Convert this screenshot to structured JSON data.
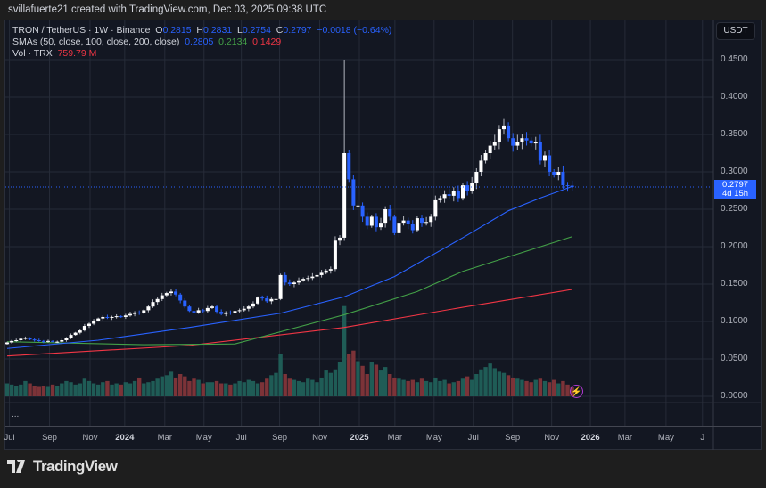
{
  "credit": "svillafuerte21 created with TradingView.com, Dec 03, 2025 09:38 UTC",
  "legend": {
    "symbol": "TRON / TetherUS · 1W · Binance",
    "o_label": "O",
    "o": "0.2815",
    "h_label": "H",
    "h": "0.2831",
    "l_label": "L",
    "l": "0.2754",
    "c_label": "C",
    "c": "0.2797",
    "change": "−0.0018 (−0.64%)",
    "sma_label": "SMAs (50, close, 100, close, 200, close)",
    "sma50": "0.2805",
    "sma100": "0.2134",
    "sma200": "0.1429",
    "vol_label": "Vol · TRX",
    "vol": "759.79 M",
    "more": "..."
  },
  "currency": "USDT",
  "last_price": {
    "value": "0.2797",
    "countdown": "4d 15h"
  },
  "logo": "TradingView",
  "colors": {
    "up": "#ffffff",
    "down": "#2962ff",
    "vol_up": "#1f5c56",
    "vol_down": "#7c3338",
    "sma50": "#2962ff",
    "sma100": "#43a047",
    "sma200": "#f23645",
    "background": "#131722",
    "grid": "#262b38"
  },
  "chart_data": {
    "type": "candlestick",
    "interval": "1W",
    "price_ticks": [
      "0.4500",
      "0.4000",
      "0.3500",
      "0.3000",
      "0.2500",
      "0.2000",
      "0.1500",
      "0.1000",
      "0.0500",
      "0.0000"
    ],
    "ylim": [
      0,
      0.5
    ],
    "time_ticks": [
      {
        "label": "Jul",
        "week": 0.5
      },
      {
        "label": "Sep",
        "week": 9.3
      },
      {
        "label": "Nov",
        "week": 18.2
      },
      {
        "label": "2024",
        "week": 25.8,
        "year": true
      },
      {
        "label": "Mar",
        "week": 34.6
      },
      {
        "label": "May",
        "week": 43.2
      },
      {
        "label": "Jul",
        "week": 51.4
      },
      {
        "label": "Sep",
        "week": 59.8
      },
      {
        "label": "Nov",
        "week": 68.6
      },
      {
        "label": "2025",
        "week": 77.3,
        "year": true
      },
      {
        "label": "Mar",
        "week": 85.1
      },
      {
        "label": "May",
        "week": 93.7
      },
      {
        "label": "Jul",
        "week": 102.3
      },
      {
        "label": "Sep",
        "week": 110.9
      },
      {
        "label": "Nov",
        "week": 119.5
      },
      {
        "label": "2026",
        "week": 128,
        "year": true
      },
      {
        "label": "Mar",
        "week": 135.6
      },
      {
        "label": "May",
        "week": 144.6
      },
      {
        "label": "J",
        "week": 152.6
      }
    ],
    "closes": [
      0.072,
      0.074,
      0.075,
      0.077,
      0.078,
      0.076,
      0.075,
      0.074,
      0.073,
      0.074,
      0.073,
      0.073,
      0.075,
      0.078,
      0.082,
      0.085,
      0.088,
      0.094,
      0.097,
      0.101,
      0.104,
      0.106,
      0.105,
      0.106,
      0.107,
      0.106,
      0.108,
      0.11,
      0.112,
      0.111,
      0.115,
      0.12,
      0.126,
      0.13,
      0.135,
      0.138,
      0.14,
      0.136,
      0.128,
      0.12,
      0.114,
      0.112,
      0.115,
      0.114,
      0.118,
      0.12,
      0.113,
      0.11,
      0.112,
      0.111,
      0.114,
      0.115,
      0.117,
      0.12,
      0.124,
      0.132,
      0.131,
      0.127,
      0.13,
      0.13,
      0.162,
      0.152,
      0.15,
      0.152,
      0.155,
      0.157,
      0.158,
      0.16,
      0.162,
      0.165,
      0.168,
      0.17,
      0.208,
      0.212,
      0.325,
      0.29,
      0.255,
      0.255,
      0.24,
      0.228,
      0.24,
      0.226,
      0.232,
      0.25,
      0.24,
      0.218,
      0.232,
      0.235,
      0.23,
      0.222,
      0.238,
      0.232,
      0.233,
      0.24,
      0.262,
      0.265,
      0.27,
      0.268,
      0.275,
      0.265,
      0.282,
      0.275,
      0.285,
      0.3,
      0.315,
      0.325,
      0.335,
      0.34,
      0.357,
      0.362,
      0.345,
      0.335,
      0.34,
      0.345,
      0.342,
      0.338,
      0.34,
      0.315,
      0.322,
      0.3,
      0.296,
      0.3,
      0.282,
      0.2815,
      0.2797
    ],
    "spike_high": {
      "week": 74,
      "value": 0.45
    },
    "volume_m": [
      1100,
      1000,
      900,
      1000,
      1300,
      1100,
      900,
      800,
      900,
      800,
      1000,
      900,
      1100,
      1300,
      1200,
      1000,
      1100,
      1500,
      1300,
      1100,
      1000,
      1200,
      1300,
      1000,
      1100,
      1000,
      1200,
      1100,
      1300,
      1600,
      1100,
      1200,
      1300,
      1500,
      1700,
      1800,
      2100,
      1600,
      1900,
      1700,
      1300,
      1500,
      1400,
      1100,
      1200,
      1200,
      1300,
      1100,
      1100,
      1000,
      1100,
      1300,
      1200,
      1400,
      1300,
      1100,
      1200,
      1500,
      1800,
      2000,
      3600,
      1900,
      1500,
      1400,
      1300,
      1200,
      1500,
      1400,
      1200,
      1600,
      2200,
      2000,
      2300,
      2900,
      7700,
      3600,
      3900,
      3000,
      2600,
      1900,
      2900,
      2700,
      2200,
      2500,
      1900,
      1600,
      1500,
      1400,
      1300,
      1400,
      1200,
      1500,
      1300,
      1200,
      1600,
      1300,
      1400,
      1100,
      1200,
      1300,
      1500,
      1700,
      1400,
      1900,
      2300,
      2500,
      2800,
      2400,
      2100,
      2000,
      1800,
      1600,
      1500,
      1400,
      1300,
      1200,
      1400,
      1500,
      1300,
      1200,
      1400,
      1100,
      1300,
      1000,
      759.79
    ],
    "sma50": [
      [
        0,
        0.064
      ],
      [
        20,
        0.075
      ],
      [
        40,
        0.092
      ],
      [
        60,
        0.111
      ],
      [
        74,
        0.133
      ],
      [
        85,
        0.16
      ],
      [
        100,
        0.212
      ],
      [
        110,
        0.248
      ],
      [
        117,
        0.265
      ],
      [
        124,
        0.2805
      ]
    ],
    "sma100": [
      [
        0,
        0.073
      ],
      [
        30,
        0.069
      ],
      [
        50,
        0.07
      ],
      [
        74,
        0.109
      ],
      [
        90,
        0.14
      ],
      [
        100,
        0.167
      ],
      [
        124,
        0.2134
      ]
    ],
    "sma200": [
      [
        0,
        0.054
      ],
      [
        40,
        0.068
      ],
      [
        74,
        0.092
      ],
      [
        100,
        0.119
      ],
      [
        124,
        0.1429
      ]
    ]
  }
}
